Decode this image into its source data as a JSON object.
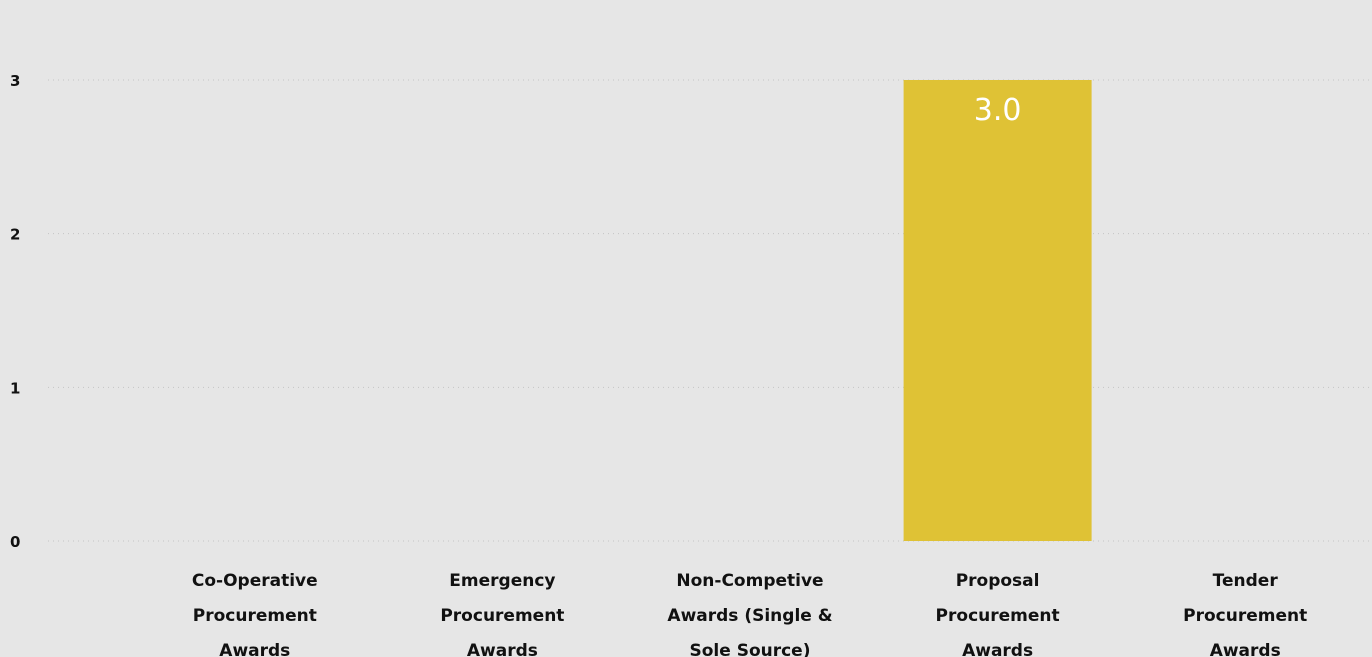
{
  "colors": {
    "background": "#e6e6e6",
    "bar": "#dfc235",
    "gridline": "#c4c4c4",
    "text": "#111111",
    "data_label": "#ffffff"
  },
  "chart_data": {
    "type": "bar",
    "title": "",
    "xlabel": "",
    "ylabel": "",
    "categories": [
      [
        "Co-Operative",
        "Procurement",
        "Awards"
      ],
      [
        "Emergency",
        "Procurement",
        "Awards"
      ],
      [
        "Non-Competive",
        "Awards (Single &",
        "Sole Source)"
      ],
      [
        "Proposal",
        "Procurement",
        "Awards"
      ],
      [
        "Tender",
        "Procurement",
        "Awards"
      ]
    ],
    "values": [
      0,
      0,
      0,
      3,
      0
    ],
    "data_labels": [
      "",
      "",
      "",
      "3.0",
      ""
    ],
    "yticks": [
      "0",
      "1",
      "2",
      "3"
    ],
    "ylim": [
      0,
      3
    ],
    "grid": true,
    "legend": "none"
  }
}
